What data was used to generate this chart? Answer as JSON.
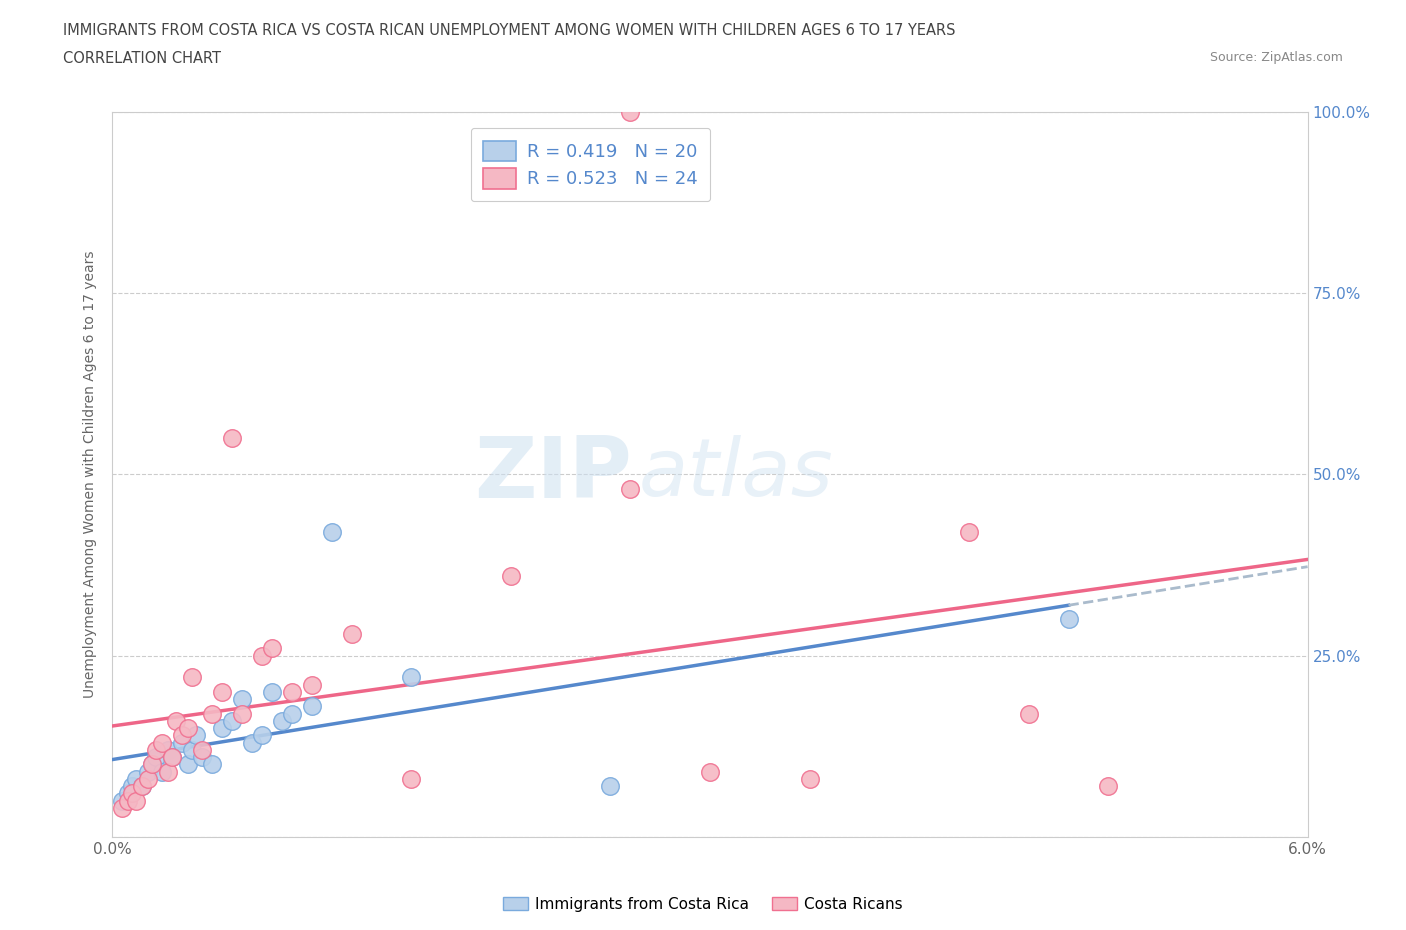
{
  "title": "IMMIGRANTS FROM COSTA RICA VS COSTA RICAN UNEMPLOYMENT AMONG WOMEN WITH CHILDREN AGES 6 TO 17 YEARS",
  "subtitle": "CORRELATION CHART",
  "source": "Source: ZipAtlas.com",
  "ylabel": "Unemployment Among Women with Children Ages 6 to 17 years",
  "xlim": [
    0.0,
    6.0
  ],
  "ylim": [
    0.0,
    100.0
  ],
  "xticks": [
    0.0,
    1.0,
    2.0,
    3.0,
    4.0,
    5.0,
    6.0
  ],
  "xticklabels": [
    "0.0%",
    "",
    "",
    "",
    "",
    "",
    "6.0%"
  ],
  "yticks": [
    0.0,
    25.0,
    50.0,
    75.0,
    100.0
  ],
  "right_yticklabels": [
    "",
    "25.0%",
    "50.0%",
    "75.0%",
    "100.0%"
  ],
  "blue_R": 0.419,
  "blue_N": 20,
  "pink_R": 0.523,
  "pink_N": 24,
  "blue_color": "#b8d0ea",
  "pink_color": "#f5b8c4",
  "blue_edge_color": "#7aaadd",
  "pink_edge_color": "#f07090",
  "blue_line_color": "#5588cc",
  "pink_line_color": "#ee6688",
  "legend_label_blue": "Immigrants from Costa Rica",
  "legend_label_pink": "Costa Ricans",
  "watermark_zip": "ZIP",
  "watermark_atlas": "atlas",
  "background_color": "#ffffff",
  "grid_color": "#cccccc",
  "title_color": "#444444",
  "axis_label_color": "#666666",
  "right_tick_color": "#5588cc",
  "blue_scatter_x": [
    0.05,
    0.08,
    0.1,
    0.12,
    0.15,
    0.18,
    0.2,
    0.22,
    0.25,
    0.28,
    0.3,
    0.35,
    0.38,
    0.4,
    0.42,
    0.45,
    0.5,
    0.55,
    0.6,
    0.65,
    0.7,
    0.75,
    0.8,
    0.85,
    0.9,
    1.0,
    1.1,
    1.5,
    2.5,
    4.8
  ],
  "blue_scatter_y": [
    5,
    6,
    7,
    8,
    7,
    9,
    10,
    11,
    9,
    12,
    11,
    13,
    10,
    12,
    14,
    11,
    10,
    15,
    16,
    19,
    13,
    14,
    20,
    16,
    17,
    18,
    42,
    22,
    7,
    30
  ],
  "pink_scatter_x": [
    0.05,
    0.08,
    0.1,
    0.12,
    0.15,
    0.18,
    0.2,
    0.22,
    0.25,
    0.28,
    0.3,
    0.32,
    0.35,
    0.38,
    0.4,
    0.45,
    0.5,
    0.55,
    0.6,
    0.65,
    0.75,
    0.8,
    0.9,
    1.0,
    1.2,
    1.5,
    2.0,
    2.6,
    3.0,
    3.5,
    4.3,
    4.6,
    5.0
  ],
  "pink_scatter_y": [
    4,
    5,
    6,
    5,
    7,
    8,
    10,
    12,
    13,
    9,
    11,
    16,
    14,
    15,
    22,
    12,
    17,
    20,
    55,
    17,
    25,
    26,
    20,
    21,
    28,
    8,
    36,
    48,
    9,
    8,
    42,
    17,
    7
  ],
  "pink_outlier_x": 2.6,
  "pink_outlier_y": 100
}
